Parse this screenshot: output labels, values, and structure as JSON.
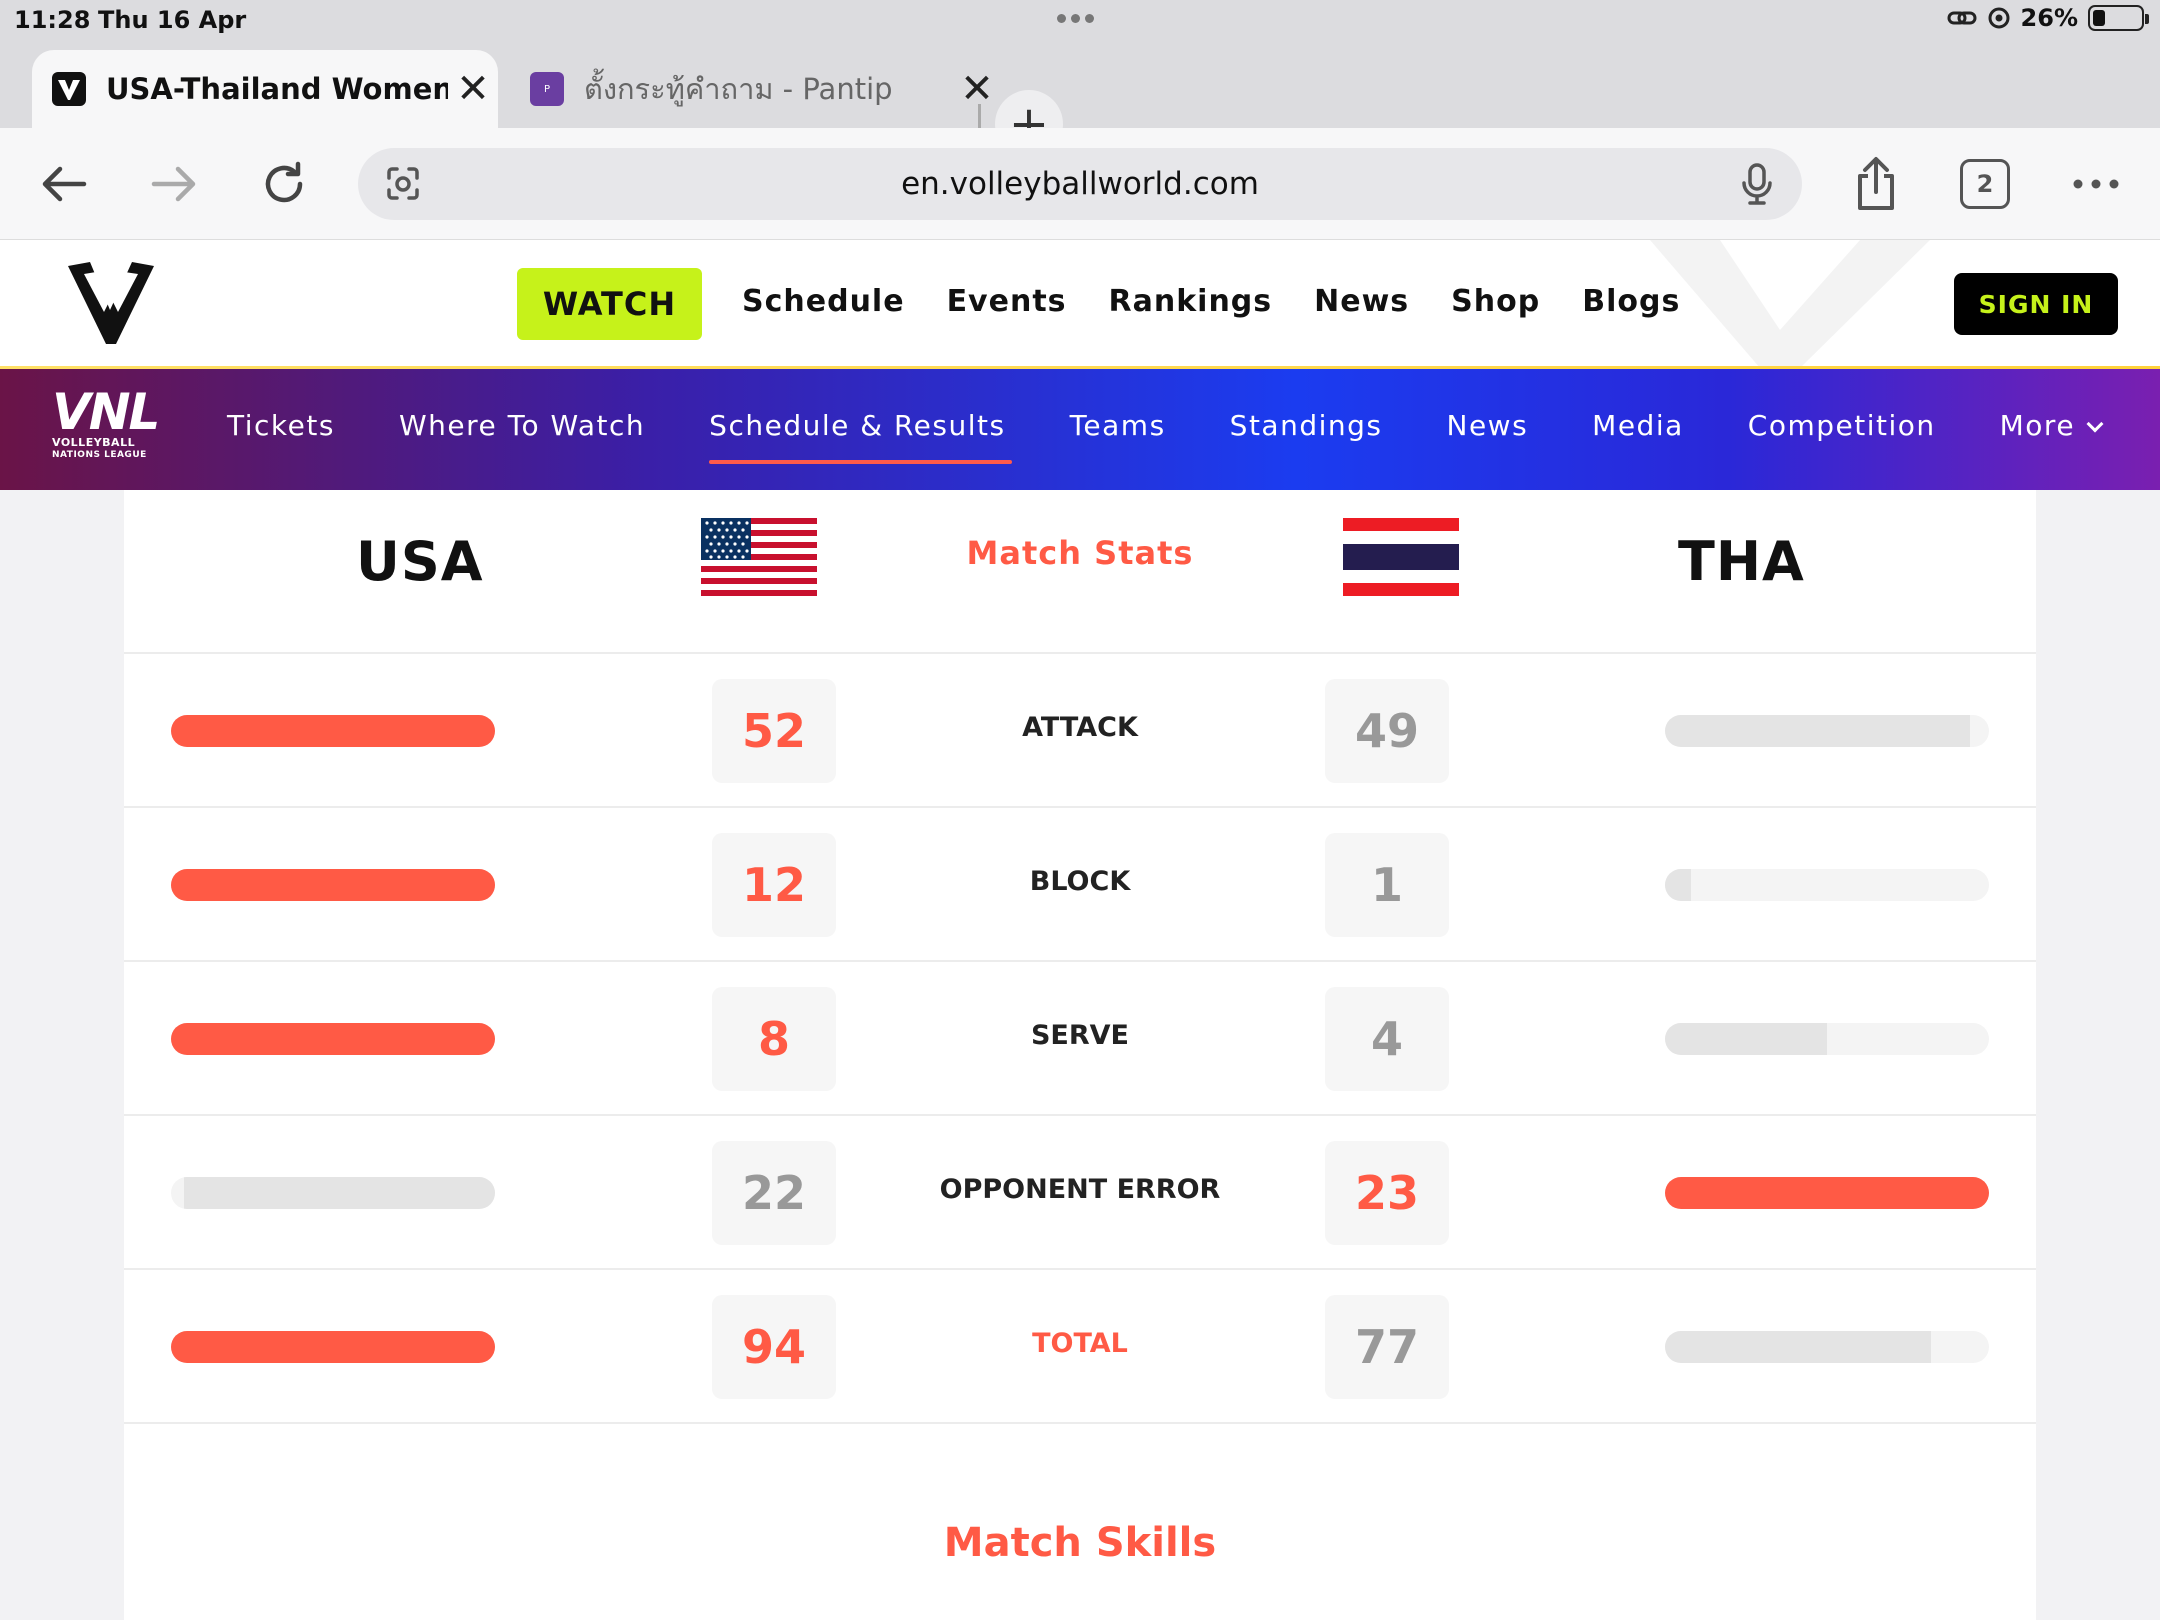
{
  "status_bar": {
    "time": "11:28",
    "date": "Thu 16 Apr",
    "battery": "26%"
  },
  "browser": {
    "tabs": [
      {
        "title": "USA-Thailand Women V",
        "favicon": "volleyballworld-icon",
        "active": true
      },
      {
        "title": "ตั้งกระทู้คำถาม - Pantip",
        "favicon": "pantip-icon",
        "active": false
      }
    ],
    "url": "en.volleyballworld.com",
    "tab_count": "2"
  },
  "site": {
    "watch_label": "WATCH",
    "nav": [
      "Schedule",
      "Events",
      "Rankings",
      "News",
      "Shop",
      "Blogs"
    ],
    "sign_in_label": "SIGN IN"
  },
  "vnl": {
    "logo_big": "VNL",
    "logo_line1": "VOLLEYBALL",
    "logo_line2": "NATIONS LEAGUE",
    "items": [
      "Tickets",
      "Where To Watch",
      "Schedule & Results",
      "Teams",
      "Standings",
      "News",
      "Media",
      "Competition",
      "More"
    ],
    "active_index": 2
  },
  "match": {
    "home_team": "USA",
    "away_team": "THA",
    "stats_title": "Match Stats",
    "skills_title": "Match Skills",
    "stats": [
      {
        "label": "ATTACK",
        "home": "52",
        "away": "49",
        "home_fill": 1.0,
        "away_fill": 0.94,
        "winner": "home"
      },
      {
        "label": "BLOCK",
        "home": "12",
        "away": "1",
        "home_fill": 1.0,
        "away_fill": 0.08,
        "winner": "home"
      },
      {
        "label": "SERVE",
        "home": "8",
        "away": "4",
        "home_fill": 1.0,
        "away_fill": 0.5,
        "winner": "home"
      },
      {
        "label": "OPPONENT ERROR",
        "home": "22",
        "away": "23",
        "home_fill": 0.96,
        "away_fill": 1.0,
        "winner": "away"
      },
      {
        "label": "TOTAL",
        "home": "94",
        "away": "77",
        "home_fill": 1.0,
        "away_fill": 0.82,
        "winner": "home"
      }
    ]
  },
  "colors": {
    "accent": "#ff5a45",
    "watch": "#c6f21a",
    "bar_empty": "#e4e4e4"
  }
}
